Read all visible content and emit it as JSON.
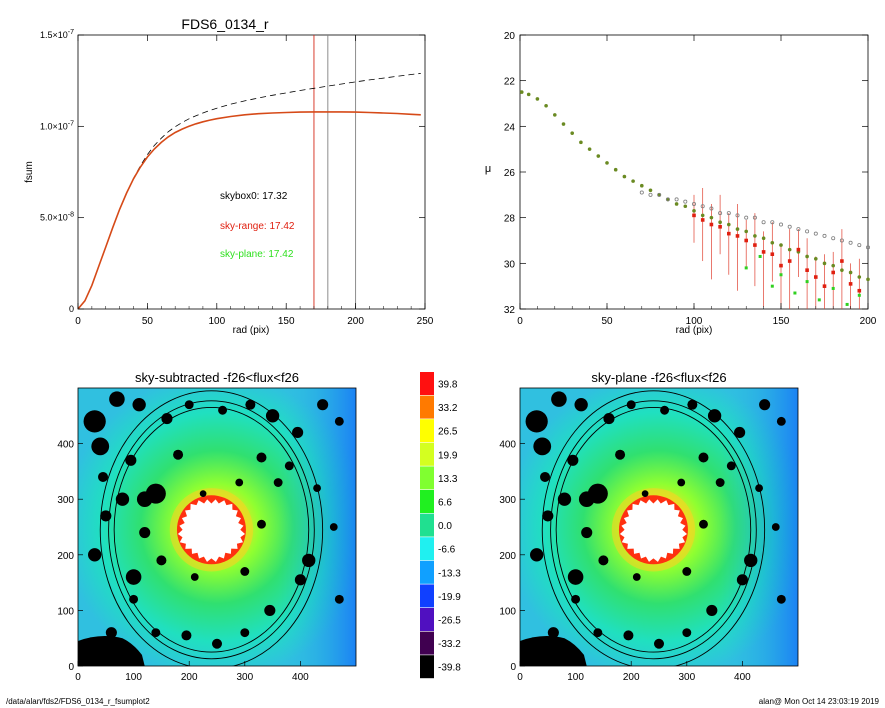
{
  "chart_data": [
    {
      "type": "line",
      "title": "FDS6_0134_r",
      "xlabel": "rad (pix)",
      "ylabel": "fsum",
      "xlim": [
        0,
        250
      ],
      "ylim": [
        0,
        1.5e-07
      ],
      "xticks": [
        "0",
        "50",
        "100",
        "150",
        "200",
        "250"
      ],
      "yticks": [
        {
          "mant": "0",
          "exp": ""
        },
        {
          "mant": "5.0×10",
          "exp": "-8"
        },
        {
          "mant": "1.0×10",
          "exp": "-7"
        },
        {
          "mant": "1.5×10",
          "exp": "-7"
        }
      ],
      "vlines": [
        {
          "x": 170,
          "color": "#d62818"
        },
        {
          "x": 180,
          "color": "#808080"
        },
        {
          "x": 200,
          "color": "#808080"
        }
      ],
      "annotations": [
        {
          "text": "skybox0: 17.32",
          "color": "#000000"
        },
        {
          "text": "sky-range: 17.42",
          "color": "#e02010"
        },
        {
          "text": "sky-plane: 17.42",
          "color": "#30e020"
        }
      ],
      "series": [
        {
          "style": "dashed",
          "color": "#000000",
          "x": [
            0,
            5,
            10,
            15,
            20,
            25,
            30,
            35,
            40,
            45,
            50,
            55,
            60,
            65,
            70,
            75,
            80,
            85,
            90,
            95,
            100,
            110,
            120,
            130,
            140,
            150,
            160,
            170,
            180,
            190,
            200,
            210,
            220,
            230,
            240,
            247
          ],
          "y": [
            0,
            0.0045,
            0.013,
            0.0235,
            0.034,
            0.0445,
            0.0545,
            0.0635,
            0.0715,
            0.0785,
            0.0845,
            0.0895,
            0.0935,
            0.097,
            0.0998,
            0.1021,
            0.1041,
            0.1058,
            0.1073,
            0.1087,
            0.1099,
            0.1121,
            0.1139,
            0.1155,
            0.117,
            0.1183,
            0.1196,
            0.1208,
            0.122,
            0.1232,
            0.1243,
            0.1254,
            0.1264,
            0.1274,
            0.1284,
            0.129
          ]
        },
        {
          "style": "solid",
          "color": "#d64a18",
          "x": [
            0,
            5,
            10,
            15,
            20,
            25,
            30,
            35,
            40,
            45,
            50,
            55,
            60,
            65,
            70,
            75,
            80,
            85,
            90,
            95,
            100,
            110,
            120,
            130,
            140,
            150,
            160,
            170,
            180,
            190,
            200,
            210,
            220,
            230,
            240,
            247
          ],
          "y": [
            0,
            0.0045,
            0.013,
            0.0235,
            0.034,
            0.0445,
            0.0545,
            0.0635,
            0.0713,
            0.0778,
            0.0832,
            0.0876,
            0.0912,
            0.0942,
            0.0966,
            0.0985,
            0.1001,
            0.1014,
            0.1025,
            0.1034,
            0.1042,
            0.1054,
            0.1063,
            0.1069,
            0.1073,
            0.1076,
            0.1078,
            0.1079,
            0.1079,
            0.1079,
            0.1078,
            0.1076,
            0.1073,
            0.107,
            0.1066,
            0.1063
          ]
        }
      ],
      "y_scale_note": "series y values in units of 1e-6"
    },
    {
      "type": "scatter",
      "xlabel": "rad (pix)",
      "ylabel": "μ",
      "xlim": [
        0,
        200
      ],
      "ylim": [
        32,
        20
      ],
      "xticks": [
        "0",
        "50",
        "100",
        "150",
        "200"
      ],
      "yticks": [
        "20",
        "22",
        "24",
        "26",
        "28",
        "30",
        "32"
      ],
      "series": [
        {
          "name": "",
          "color": "#6a8a22",
          "x": [
            1,
            5,
            10,
            15,
            20,
            25,
            30,
            35,
            40,
            45,
            50,
            55,
            60,
            65,
            70,
            75,
            80,
            85,
            90,
            95,
            100,
            105,
            110,
            115,
            120,
            125,
            130,
            135,
            140,
            145,
            150,
            155,
            160,
            165,
            170,
            175,
            180,
            185,
            190,
            195,
            200
          ],
          "y": [
            22.5,
            22.6,
            22.8,
            23.1,
            23.5,
            23.9,
            24.3,
            24.7,
            25.0,
            25.3,
            25.6,
            25.9,
            26.2,
            26.4,
            26.6,
            26.8,
            27.0,
            27.2,
            27.4,
            27.5,
            27.7,
            27.9,
            28.0,
            28.2,
            28.3,
            28.5,
            28.6,
            28.8,
            28.9,
            29.1,
            29.2,
            29.4,
            29.5,
            29.7,
            29.8,
            30.0,
            30.1,
            30.3,
            30.4,
            30.6,
            30.7
          ]
        },
        {
          "name": "",
          "color": "#808080",
          "x": [
            70,
            75,
            80,
            85,
            90,
            95,
            100,
            105,
            110,
            115,
            120,
            125,
            130,
            135,
            140,
            145,
            150,
            155,
            160,
            165,
            170,
            175,
            180,
            185,
            190,
            195,
            200
          ],
          "y": [
            26.9,
            27.0,
            27.0,
            27.2,
            27.2,
            27.3,
            27.4,
            27.5,
            27.6,
            27.8,
            27.8,
            27.9,
            28.0,
            28.0,
            28.2,
            28.2,
            28.3,
            28.4,
            28.5,
            28.6,
            28.7,
            28.8,
            28.9,
            29.0,
            29.1,
            29.2,
            29.3
          ]
        },
        {
          "name": "",
          "color": "#e02010",
          "x": [
            100,
            105,
            110,
            115,
            120,
            125,
            130,
            135,
            140,
            145,
            150,
            155,
            160,
            165,
            170,
            175,
            180,
            185,
            190,
            195
          ],
          "y": [
            27.9,
            28.1,
            28.3,
            28.4,
            28.7,
            28.8,
            29.0,
            29.2,
            29.5,
            29.6,
            30.1,
            29.9,
            29.4,
            30.3,
            30.6,
            31.0,
            30.4,
            29.9,
            30.9,
            31.2
          ]
        },
        {
          "name": "",
          "color": "#30d020",
          "x": [
            130,
            138,
            145,
            150,
            158,
            165,
            172,
            180,
            188,
            195
          ],
          "y": [
            30.2,
            29.7,
            31.0,
            30.5,
            31.3,
            30.8,
            31.6,
            31.1,
            31.8,
            31.4
          ]
        }
      ]
    },
    {
      "type": "heatmap",
      "title": "sky-subtracted -f26<flux<f26",
      "xlim": [
        0,
        500
      ],
      "ylim": [
        0,
        500
      ],
      "xticks": [
        "0",
        "100",
        "200",
        "300",
        "400"
      ],
      "yticks": [
        "0",
        "100",
        "200",
        "300",
        "400"
      ],
      "center": [
        240,
        245
      ],
      "ellipses": [
        {
          "a": 175,
          "b": 220
        },
        {
          "a": 185,
          "b": 232
        },
        {
          "a": 200,
          "b": 250
        }
      ]
    },
    {
      "type": "heatmap",
      "title": "sky-plane -f26<flux<f26",
      "xlim": [
        0,
        500
      ],
      "ylim": [
        0,
        500
      ],
      "xticks": [
        "0",
        "100",
        "200",
        "300",
        "400"
      ],
      "yticks": [
        "0",
        "100",
        "200",
        "300",
        "400"
      ],
      "center": [
        240,
        245
      ],
      "ellipses": [
        {
          "a": 175,
          "b": 220
        },
        {
          "a": 185,
          "b": 232
        },
        {
          "a": 200,
          "b": 250
        }
      ]
    }
  ],
  "colorbar": {
    "labels": [
      "39.8",
      "33.2",
      "26.5",
      "19.9",
      "13.3",
      "6.6",
      "0.0",
      "-6.6",
      "-13.3",
      "-19.9",
      "-26.5",
      "-33.2",
      "-39.8"
    ],
    "colors": [
      "#ff1010",
      "#ff7a00",
      "#ffff00",
      "#d4ff20",
      "#80ff30",
      "#20f020",
      "#20e090",
      "#20f0f0",
      "#10a0ff",
      "#1040ff",
      "#5010c0",
      "#400050",
      "#000000"
    ]
  },
  "footer": {
    "left": "/data/alan/fds2/FDS6_0134_r_fsumplot2",
    "right": "alan@  Mon Oct 14 23:03:19 2019"
  }
}
